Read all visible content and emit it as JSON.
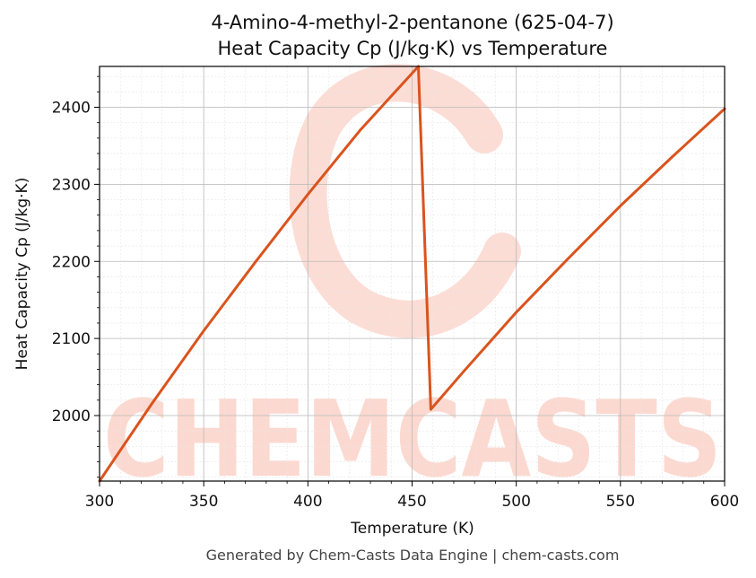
{
  "chart_data": {
    "type": "line",
    "title": "4-Amino-4-methyl-2-pentanone (625-04-7)",
    "subtitle": "Heat Capacity Cp (J/kg·K) vs Temperature",
    "xlabel": "Temperature (K)",
    "ylabel": "Heat Capacity Cp (J/kg·K)",
    "xlim": [
      300,
      600
    ],
    "ylim": [
      1915,
      2453
    ],
    "xticks": [
      300,
      350,
      400,
      450,
      500,
      550,
      600
    ],
    "yticks": [
      2000,
      2100,
      2200,
      2300,
      2400
    ],
    "grid": true,
    "series": [
      {
        "color": "#d9541e",
        "x": [
          300,
          325,
          350,
          375,
          400,
          425,
          453,
          459,
          475,
          500,
          525,
          550,
          575,
          600
        ],
        "y": [
          1915,
          2015,
          2110,
          2200,
          2287,
          2370,
          2453,
          2008,
          2058,
          2134,
          2204,
          2272,
          2336,
          2398
        ]
      }
    ]
  },
  "watermark": {
    "text": "CHEMCASTS",
    "color": "#fcd9d0"
  },
  "footer": "Generated by Chem-Casts Data Engine | chem-casts.com"
}
